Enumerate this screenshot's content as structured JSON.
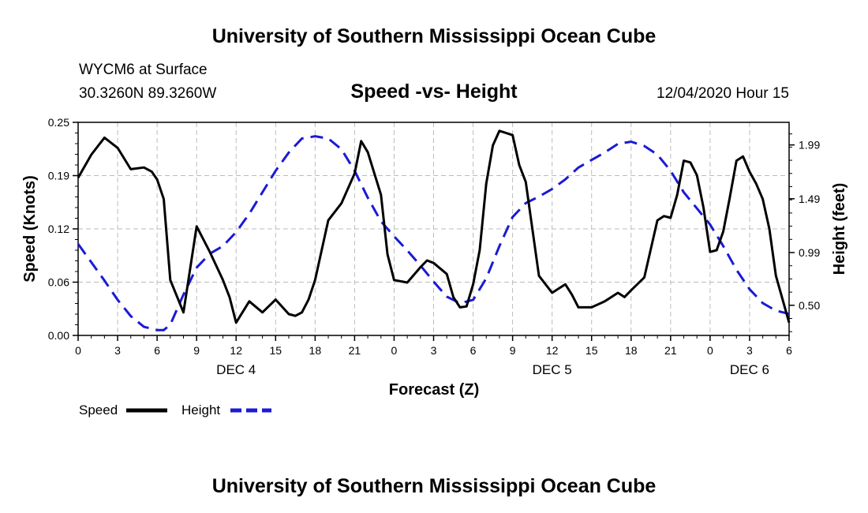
{
  "header": {
    "title": "University of Southern Mississippi Ocean Cube",
    "station": "WYCM6 at Surface",
    "coords": "30.3260N 89.3260W",
    "subtitle": "Speed -vs- Height",
    "datetime": "12/04/2020 Hour 15",
    "footer_title": "University of Southern Mississippi Ocean Cube"
  },
  "legend": {
    "speed_label": "Speed",
    "height_label": "Height"
  },
  "colors": {
    "speed": "#000000",
    "height": "#1a1ad6"
  },
  "chart_data": {
    "type": "line",
    "title": "Speed -vs- Height",
    "xlabel": "Forecast (Z)",
    "ylabel": "Speed (Knots)",
    "y2label": "Height (feet)",
    "xlim": [
      0,
      54
    ],
    "ylim": [
      0,
      0.25
    ],
    "y2lim": [
      0.22,
      2.2
    ],
    "x_ticks": [
      {
        "x": 0,
        "label": "0"
      },
      {
        "x": 3,
        "label": "3"
      },
      {
        "x": 6,
        "label": "6"
      },
      {
        "x": 9,
        "label": "9"
      },
      {
        "x": 12,
        "label": "12"
      },
      {
        "x": 15,
        "label": "15"
      },
      {
        "x": 18,
        "label": "18"
      },
      {
        "x": 21,
        "label": "21"
      },
      {
        "x": 24,
        "label": "0"
      },
      {
        "x": 27,
        "label": "3"
      },
      {
        "x": 30,
        "label": "6"
      },
      {
        "x": 33,
        "label": "9"
      },
      {
        "x": 36,
        "label": "12"
      },
      {
        "x": 39,
        "label": "15"
      },
      {
        "x": 42,
        "label": "18"
      },
      {
        "x": 45,
        "label": "21"
      },
      {
        "x": 48,
        "label": "0"
      },
      {
        "x": 51,
        "label": "3"
      },
      {
        "x": 54,
        "label": "6"
      }
    ],
    "y_ticks": [
      {
        "y": 0,
        "label": "0.00"
      },
      {
        "y": 0.0625,
        "label": "0.06"
      },
      {
        "y": 0.125,
        "label": "0.12"
      },
      {
        "y": 0.1875,
        "label": "0.19"
      },
      {
        "y": 0.25,
        "label": "0.25"
      }
    ],
    "y2_ticks": [
      {
        "y": 0.5,
        "label": "0.50"
      },
      {
        "y": 0.99,
        "label": "0.99"
      },
      {
        "y": 1.49,
        "label": "1.49"
      },
      {
        "y": 1.99,
        "label": "1.99"
      }
    ],
    "day_labels": [
      {
        "x": 12,
        "label": "DEC 4"
      },
      {
        "x": 36,
        "label": "DEC 5"
      },
      {
        "x": 51,
        "label": "DEC 6"
      }
    ],
    "series": [
      {
        "name": "Speed",
        "axis": "left",
        "style": "solid",
        "x": [
          0,
          1,
          2,
          3,
          4,
          5,
          5.6,
          6,
          6.5,
          7,
          8,
          9,
          10,
          11,
          11.5,
          12,
          13,
          14,
          15,
          16,
          16.5,
          17,
          17.5,
          18,
          19,
          20,
          21,
          21.5,
          22,
          23,
          23.5,
          24,
          25,
          26,
          26.5,
          27,
          28,
          28.5,
          29,
          29.5,
          30,
          30.5,
          31,
          31.5,
          32,
          33,
          33.5,
          34,
          35,
          36,
          36.5,
          37,
          37.5,
          38,
          39,
          40,
          41,
          41.5,
          42,
          43,
          44,
          44.5,
          45,
          45.5,
          46,
          46.5,
          47,
          47.5,
          48,
          48.5,
          49,
          49.5,
          50,
          50.5,
          51,
          51.5,
          52,
          52.5,
          53,
          54
        ],
        "values": [
          0.185,
          0.212,
          0.232,
          0.22,
          0.195,
          0.197,
          0.192,
          0.183,
          0.16,
          0.065,
          0.027,
          0.128,
          0.098,
          0.065,
          0.045,
          0.015,
          0.04,
          0.027,
          0.042,
          0.025,
          0.023,
          0.027,
          0.042,
          0.065,
          0.135,
          0.155,
          0.19,
          0.228,
          0.215,
          0.165,
          0.095,
          0.065,
          0.062,
          0.08,
          0.088,
          0.085,
          0.072,
          0.045,
          0.033,
          0.034,
          0.06,
          0.1,
          0.178,
          0.223,
          0.24,
          0.235,
          0.2,
          0.18,
          0.07,
          0.05,
          0.055,
          0.06,
          0.048,
          0.033,
          0.033,
          0.04,
          0.05,
          0.045,
          0.053,
          0.068,
          0.135,
          0.14,
          0.138,
          0.165,
          0.205,
          0.203,
          0.188,
          0.15,
          0.098,
          0.1,
          0.122,
          0.162,
          0.205,
          0.21,
          0.192,
          0.178,
          0.16,
          0.125,
          0.07,
          0.015
        ]
      },
      {
        "name": "Height",
        "axis": "right",
        "style": "dashed",
        "x": [
          0,
          1,
          2,
          3,
          4,
          5,
          6,
          6.5,
          7,
          8,
          9,
          10,
          11,
          12,
          13,
          14,
          15,
          16,
          17,
          18,
          19,
          20,
          21,
          22,
          23,
          24,
          25,
          26,
          27,
          28,
          29,
          30,
          31,
          32,
          33,
          34,
          35,
          36,
          37,
          38,
          39,
          40,
          41,
          42,
          43,
          44,
          45,
          46,
          47,
          48,
          49,
          50,
          51,
          52,
          53,
          54
        ],
        "values": [
          1.07,
          0.9,
          0.73,
          0.55,
          0.4,
          0.3,
          0.27,
          0.27,
          0.32,
          0.6,
          0.85,
          0.98,
          1.05,
          1.18,
          1.35,
          1.55,
          1.75,
          1.92,
          2.05,
          2.07,
          2.05,
          1.95,
          1.75,
          1.5,
          1.28,
          1.14,
          1.01,
          0.87,
          0.72,
          0.58,
          0.52,
          0.55,
          0.75,
          1.05,
          1.32,
          1.45,
          1.51,
          1.58,
          1.67,
          1.78,
          1.85,
          1.92,
          2.0,
          2.02,
          1.98,
          1.9,
          1.75,
          1.55,
          1.4,
          1.25,
          1.05,
          0.83,
          0.65,
          0.52,
          0.45,
          0.42
        ]
      }
    ]
  }
}
